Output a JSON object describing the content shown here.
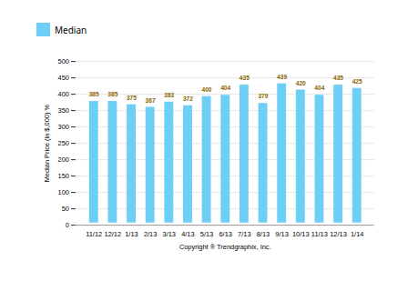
{
  "chart_data": {
    "type": "bar",
    "categories": [
      "11/12",
      "12/12",
      "1/13",
      "2/13",
      "3/13",
      "4/13",
      "5/13",
      "6/13",
      "7/13",
      "8/13",
      "9/13",
      "10/13",
      "11/13",
      "12/13",
      "1/14"
    ],
    "series": [
      {
        "name": "Median",
        "color": "#6ecff6",
        "values": [
          385,
          385,
          375,
          367,
          383,
          372,
          400,
          404,
          435,
          379,
          439,
          420,
          404,
          435,
          425
        ]
      }
    ],
    "xlabel": "Copyright ® Trendgraphix, Inc.",
    "ylabel": "Median Price (in $,000) %",
    "ylim": [
      0,
      500
    ],
    "yticks": [
      0,
      50,
      100,
      150,
      200,
      250,
      300,
      350,
      400,
      450,
      500
    ],
    "grid": true,
    "legend": "top",
    "data_labels": true
  }
}
